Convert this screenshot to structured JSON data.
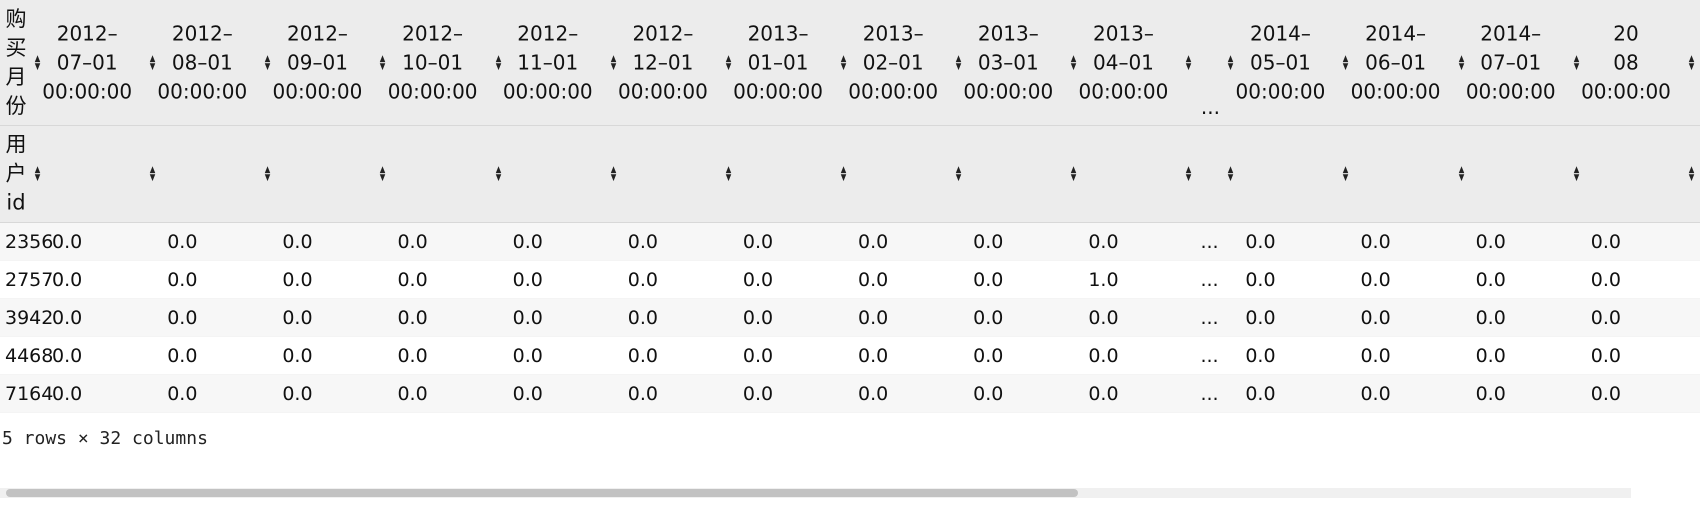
{
  "table": {
    "column_header_label": "购买月份",
    "index_header_label": "用户id",
    "columns": [
      "2012–\n07–01\n00:00:00",
      "2012–\n08–01\n00:00:00",
      "2012–\n09–01\n00:00:00",
      "2012–\n10–01\n00:00:00",
      "2012–\n11–01\n00:00:00",
      "2012–\n12–01\n00:00:00",
      "2013–\n01–01\n00:00:00",
      "2013–\n02–01\n00:00:00",
      "2013–\n03–01\n00:00:00",
      "2013–\n04–01\n00:00:00",
      "...",
      "2014–\n05–01\n00:00:00",
      "2014–\n06–01\n00:00:00",
      "2014–\n07–01\n00:00:00",
      "20\n08\n00:00:00"
    ],
    "rows": [
      {
        "id": "2356",
        "values": [
          "0.0",
          "0.0",
          "0.0",
          "0.0",
          "0.0",
          "0.0",
          "0.0",
          "0.0",
          "0.0",
          "0.0",
          "...",
          "0.0",
          "0.0",
          "0.0",
          "0.0"
        ]
      },
      {
        "id": "2757",
        "values": [
          "0.0",
          "0.0",
          "0.0",
          "0.0",
          "0.0",
          "0.0",
          "0.0",
          "0.0",
          "0.0",
          "1.0",
          "...",
          "0.0",
          "0.0",
          "0.0",
          "0.0"
        ]
      },
      {
        "id": "3942",
        "values": [
          "0.0",
          "0.0",
          "0.0",
          "0.0",
          "0.0",
          "0.0",
          "0.0",
          "0.0",
          "0.0",
          "0.0",
          "...",
          "0.0",
          "0.0",
          "0.0",
          "0.0"
        ]
      },
      {
        "id": "4468",
        "values": [
          "0.0",
          "0.0",
          "0.0",
          "0.0",
          "0.0",
          "0.0",
          "0.0",
          "0.0",
          "0.0",
          "0.0",
          "...",
          "0.0",
          "0.0",
          "0.0",
          "0.0"
        ]
      },
      {
        "id": "7164",
        "values": [
          "0.0",
          "0.0",
          "0.0",
          "0.0",
          "0.0",
          "0.0",
          "0.0",
          "0.0",
          "0.0",
          "0.0",
          "...",
          "0.0",
          "0.0",
          "0.0",
          "0.0"
        ]
      }
    ]
  },
  "footer": {
    "shape_text": "5 rows × 32 columns"
  },
  "icons": {
    "sort": "sort-arrows-icon"
  }
}
